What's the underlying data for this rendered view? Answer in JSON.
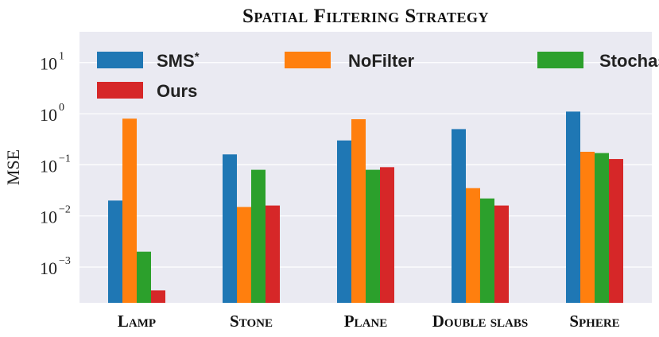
{
  "chart_data": {
    "type": "bar",
    "title": "Spatial Filtering Strategy",
    "ylabel": "MSE",
    "xlabel": "",
    "yscale": "log",
    "ylim": [
      0.0002,
      40
    ],
    "ytick_values": [
      0.001,
      0.01,
      0.1,
      1,
      10
    ],
    "ytick_labels": [
      {
        "base": "10",
        "exp": "−3"
      },
      {
        "base": "10",
        "exp": "−2"
      },
      {
        "base": "10",
        "exp": "−1"
      },
      {
        "base": "10",
        "exp": "0"
      },
      {
        "base": "10",
        "exp": "1"
      }
    ],
    "grid": true,
    "legend_position": "top",
    "categories": [
      "Lamp",
      "Stone",
      "Plane",
      "Double slabs",
      "Sphere"
    ],
    "series": [
      {
        "name": "SMS",
        "marker": "*",
        "color": "#1f77b4",
        "values": [
          0.02,
          0.16,
          0.3,
          0.5,
          1.1
        ]
      },
      {
        "name": "NoFilter",
        "marker": "",
        "color": "#ff7f0e",
        "values": [
          0.8,
          0.015,
          0.78,
          0.035,
          0.18
        ]
      },
      {
        "name": "StochasticFilter",
        "marker": "",
        "color": "#2ca02c",
        "values": [
          0.002,
          0.08,
          0.08,
          0.022,
          0.17
        ]
      },
      {
        "name": "Ours",
        "marker": "",
        "color": "#d62728",
        "values": [
          0.00035,
          0.016,
          0.09,
          0.016,
          0.13
        ]
      }
    ]
  }
}
